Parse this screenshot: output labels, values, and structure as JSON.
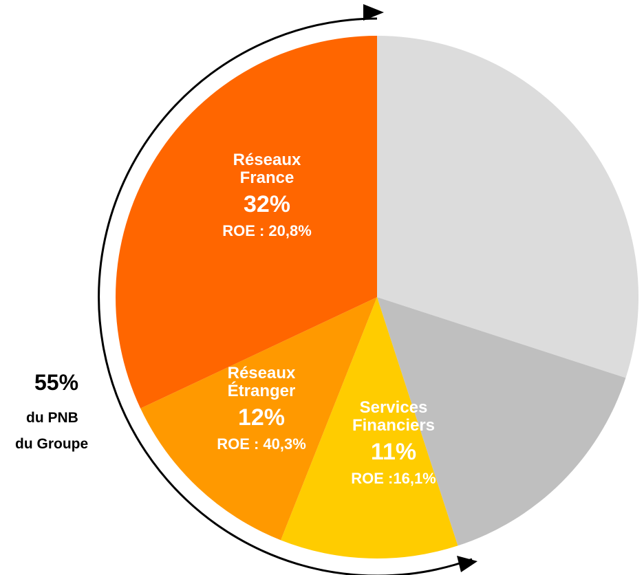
{
  "chart_data": {
    "type": "pie",
    "categories": [
      null,
      null,
      "Services Financiers",
      "Réseaux Étranger",
      "Réseaux France"
    ],
    "values": [
      30,
      15,
      11,
      12,
      32
    ],
    "value_labels": [
      null,
      null,
      "11%",
      "12%",
      "32%"
    ],
    "roe_labels": [
      null,
      null,
      "ROE :16,1%",
      "ROE : 40,3%",
      "ROE : 20,8%"
    ],
    "colors": [
      "#dcdcdc",
      "#bfbfbf",
      "#ffcc00",
      "#ff9900",
      "#ff6600"
    ],
    "annotation": {
      "value": "55%",
      "lines": [
        "du PNB",
        "du Groupe"
      ]
    }
  }
}
